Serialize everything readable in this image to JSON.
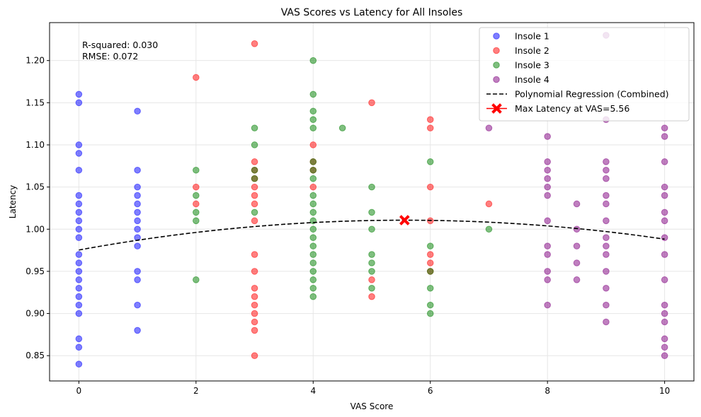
{
  "chart_data": {
    "type": "scatter",
    "title": "VAS Scores vs Latency for All Insoles",
    "xlabel": "VAS Score",
    "ylabel": "Latency",
    "xlim": [
      -0.5,
      10.5
    ],
    "ylim": [
      0.82,
      1.245
    ],
    "x_ticks": [
      0,
      2,
      4,
      6,
      8,
      10
    ],
    "y_ticks": [
      0.85,
      0.9,
      0.95,
      1.0,
      1.05,
      1.1,
      1.15,
      1.2
    ],
    "x_tick_labels": [
      "0",
      "2",
      "4",
      "6",
      "8",
      "10"
    ],
    "y_tick_labels": [
      "0.85",
      "0.90",
      "0.95",
      "1.00",
      "1.05",
      "1.10",
      "1.15",
      "1.20"
    ],
    "grid": true,
    "legend_position": "top-right",
    "annotation_lines": [
      "R-squared: 0.030",
      "RMSE: 0.072"
    ],
    "series": [
      {
        "name": "Insole 1",
        "color": "#0000ff",
        "kind": "scatter",
        "points": [
          [
            0,
            0.84
          ],
          [
            0,
            0.86
          ],
          [
            0,
            0.87
          ],
          [
            0,
            0.9
          ],
          [
            0,
            0.91
          ],
          [
            0,
            0.92
          ],
          [
            0,
            0.93
          ],
          [
            0,
            0.94
          ],
          [
            0,
            0.95
          ],
          [
            0,
            0.96
          ],
          [
            0,
            0.97
          ],
          [
            0,
            0.99
          ],
          [
            0,
            1.0
          ],
          [
            0,
            1.01
          ],
          [
            0,
            1.02
          ],
          [
            0,
            1.03
          ],
          [
            0,
            1.04
          ],
          [
            0,
            1.07
          ],
          [
            0,
            1.09
          ],
          [
            0,
            1.1
          ],
          [
            0,
            1.15
          ],
          [
            0,
            1.16
          ],
          [
            1,
            0.88
          ],
          [
            1,
            0.91
          ],
          [
            1,
            0.94
          ],
          [
            1,
            0.95
          ],
          [
            1,
            0.98
          ],
          [
            1,
            0.99
          ],
          [
            1,
            1.0
          ],
          [
            1,
            1.01
          ],
          [
            1,
            1.02
          ],
          [
            1,
            1.03
          ],
          [
            1,
            1.04
          ],
          [
            1,
            1.05
          ],
          [
            1,
            1.07
          ],
          [
            1,
            1.14
          ]
        ]
      },
      {
        "name": "Insole 2",
        "color": "#ff0000",
        "kind": "scatter",
        "points": [
          [
            2,
            1.03
          ],
          [
            2,
            1.05
          ],
          [
            2,
            1.18
          ],
          [
            3,
            0.85
          ],
          [
            3,
            0.88
          ],
          [
            3,
            0.89
          ],
          [
            3,
            0.9
          ],
          [
            3,
            0.91
          ],
          [
            3,
            0.92
          ],
          [
            3,
            0.93
          ],
          [
            3,
            0.95
          ],
          [
            3,
            0.97
          ],
          [
            3,
            1.01
          ],
          [
            3,
            1.03
          ],
          [
            3,
            1.04
          ],
          [
            3,
            1.05
          ],
          [
            3,
            1.06
          ],
          [
            3,
            1.07
          ],
          [
            3,
            1.08
          ],
          [
            3,
            1.22
          ],
          [
            4,
            1.05
          ],
          [
            4,
            1.07
          ],
          [
            4,
            1.08
          ],
          [
            4,
            1.1
          ],
          [
            5,
            0.92
          ],
          [
            5,
            0.94
          ],
          [
            5,
            1.15
          ],
          [
            6,
            0.95
          ],
          [
            6,
            0.96
          ],
          [
            6,
            0.97
          ],
          [
            6,
            1.01
          ],
          [
            6,
            1.05
          ],
          [
            6,
            1.12
          ],
          [
            6,
            1.13
          ],
          [
            7,
            1.03
          ]
        ]
      },
      {
        "name": "Insole 3",
        "color": "#008000",
        "kind": "scatter",
        "points": [
          [
            2,
            0.94
          ],
          [
            2,
            1.01
          ],
          [
            2,
            1.02
          ],
          [
            2,
            1.04
          ],
          [
            2,
            1.07
          ],
          [
            3,
            1.02
          ],
          [
            3,
            1.06
          ],
          [
            3,
            1.07
          ],
          [
            3,
            1.1
          ],
          [
            3,
            1.12
          ],
          [
            4,
            0.92
          ],
          [
            4,
            0.93
          ],
          [
            4,
            0.94
          ],
          [
            4,
            0.95
          ],
          [
            4,
            0.96
          ],
          [
            4,
            0.97
          ],
          [
            4,
            0.98
          ],
          [
            4,
            0.99
          ],
          [
            4,
            1.0
          ],
          [
            4,
            1.01
          ],
          [
            4,
            1.02
          ],
          [
            4,
            1.03
          ],
          [
            4,
            1.04
          ],
          [
            4,
            1.06
          ],
          [
            4,
            1.07
          ],
          [
            4,
            1.08
          ],
          [
            4,
            1.12
          ],
          [
            4,
            1.13
          ],
          [
            4,
            1.14
          ],
          [
            4,
            1.16
          ],
          [
            4,
            1.2
          ],
          [
            4.5,
            1.12
          ],
          [
            5,
            0.93
          ],
          [
            5,
            0.95
          ],
          [
            5,
            0.96
          ],
          [
            5,
            0.97
          ],
          [
            5,
            1.0
          ],
          [
            5,
            1.02
          ],
          [
            5,
            1.05
          ],
          [
            6,
            0.9
          ],
          [
            6,
            0.91
          ],
          [
            6,
            0.93
          ],
          [
            6,
            0.95
          ],
          [
            6,
            0.98
          ],
          [
            6,
            1.08
          ],
          [
            7,
            1.0
          ]
        ]
      },
      {
        "name": "Insole 4",
        "color": "#800080",
        "kind": "scatter",
        "points": [
          [
            7,
            1.12
          ],
          [
            8,
            0.91
          ],
          [
            8,
            0.94
          ],
          [
            8,
            0.95
          ],
          [
            8,
            0.97
          ],
          [
            8,
            0.98
          ],
          [
            8,
            1.01
          ],
          [
            8,
            1.04
          ],
          [
            8,
            1.05
          ],
          [
            8,
            1.06
          ],
          [
            8,
            1.07
          ],
          [
            8,
            1.08
          ],
          [
            8,
            1.11
          ],
          [
            8.5,
            0.94
          ],
          [
            8.5,
            0.96
          ],
          [
            8.5,
            0.98
          ],
          [
            8.5,
            1.0
          ],
          [
            8.5,
            1.03
          ],
          [
            9,
            0.89
          ],
          [
            9,
            0.91
          ],
          [
            9,
            0.93
          ],
          [
            9,
            0.95
          ],
          [
            9,
            0.97
          ],
          [
            9,
            0.98
          ],
          [
            9,
            0.99
          ],
          [
            9,
            1.01
          ],
          [
            9,
            1.03
          ],
          [
            9,
            1.04
          ],
          [
            9,
            1.06
          ],
          [
            9,
            1.07
          ],
          [
            9,
            1.08
          ],
          [
            9,
            1.13
          ],
          [
            9,
            1.23
          ],
          [
            10,
            0.85
          ],
          [
            10,
            0.86
          ],
          [
            10,
            0.87
          ],
          [
            10,
            0.89
          ],
          [
            10,
            0.9
          ],
          [
            10,
            0.91
          ],
          [
            10,
            0.94
          ],
          [
            10,
            0.97
          ],
          [
            10,
            0.99
          ],
          [
            10,
            1.01
          ],
          [
            10,
            1.02
          ],
          [
            10,
            1.04
          ],
          [
            10,
            1.05
          ],
          [
            10,
            1.08
          ],
          [
            10,
            1.11
          ],
          [
            10,
            1.12
          ]
        ]
      },
      {
        "name": "Polynomial Regression (Combined)",
        "color": "#000000",
        "kind": "curve",
        "coefficients": [
          0.9753,
          0.012713,
          -0.0011425
        ],
        "x_range": [
          0,
          10
        ]
      },
      {
        "name": "Max Latency at VAS=5.56",
        "color": "#ff0000",
        "kind": "marker",
        "points": [
          [
            5.56,
            1.0107
          ]
        ]
      }
    ]
  }
}
